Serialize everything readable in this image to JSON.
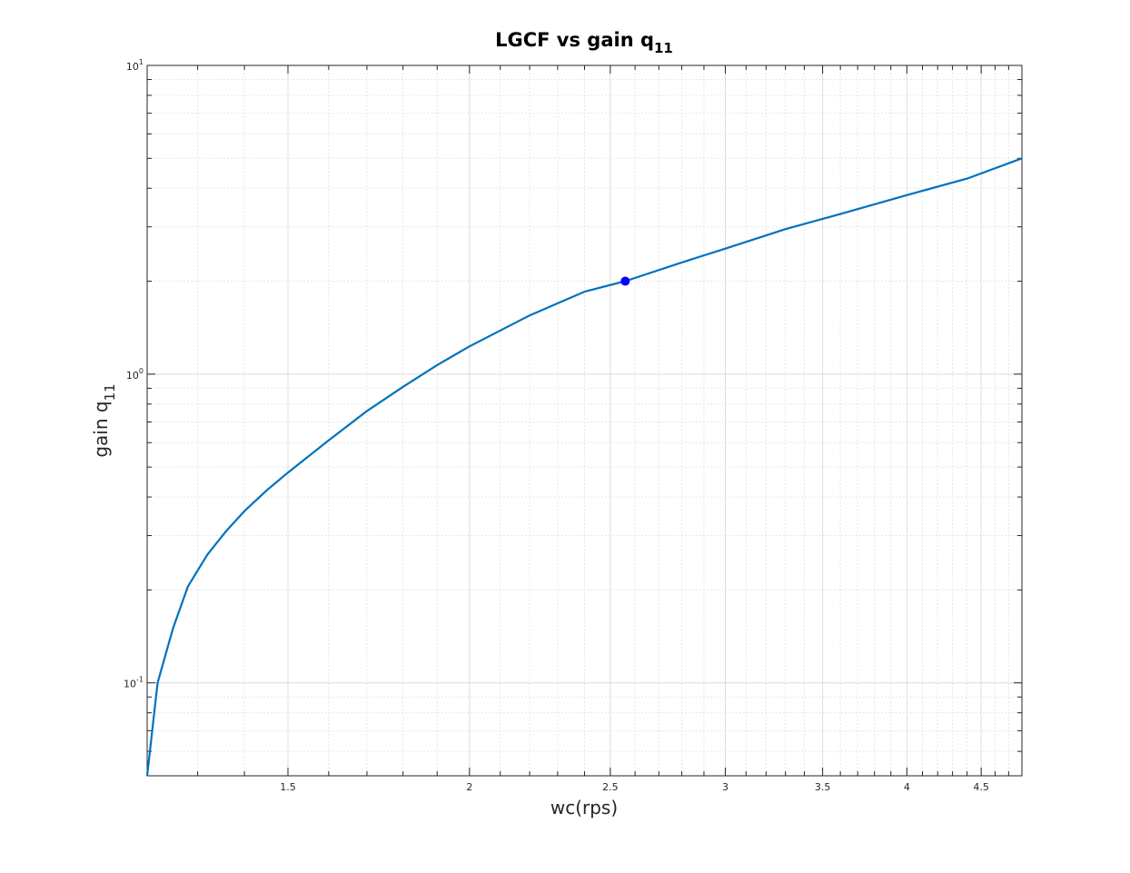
{
  "chart_data": {
    "type": "line",
    "title": "LGCF vs gain q",
    "title_subscript": "11",
    "xlabel": "wc(rps)",
    "ylabel": "gain q",
    "ylabel_subscript": "11",
    "x_scale": "log",
    "y_scale": "log",
    "xlim": [
      1.2,
      4.8
    ],
    "ylim": [
      0.05,
      10
    ],
    "grid": true,
    "minor_grid": true,
    "x_ticks": [
      1.5,
      2,
      2.5,
      3,
      3.5,
      4,
      4.5
    ],
    "x_tick_labels": [
      "1.5",
      "2",
      "2.5",
      "3",
      "3.5",
      "4",
      "4.5"
    ],
    "y_ticks": [
      0.1,
      1,
      10
    ],
    "y_tick_labels": [
      {
        "base": "10",
        "exp": "-1"
      },
      {
        "base": "10",
        "exp": "0"
      },
      {
        "base": "10",
        "exp": "1"
      }
    ],
    "series": [
      {
        "color": "#0072bd",
        "x": [
          1.2,
          1.22,
          1.25,
          1.28,
          1.32,
          1.36,
          1.4,
          1.45,
          1.5,
          1.6,
          1.7,
          1.8,
          1.9,
          2.0,
          2.2,
          2.4,
          2.56,
          2.8,
          3.0,
          3.3,
          3.6,
          4.0,
          4.4,
          4.8
        ],
        "y": [
          0.05,
          0.1,
          0.15,
          0.205,
          0.26,
          0.31,
          0.36,
          0.42,
          0.48,
          0.61,
          0.76,
          0.91,
          1.07,
          1.23,
          1.55,
          1.85,
          2.0,
          2.3,
          2.55,
          2.95,
          3.3,
          3.8,
          4.3,
          5.0
        ],
        "marker": {
          "x": 2.56,
          "y": 2.0,
          "color": "#0000ff"
        }
      }
    ]
  }
}
